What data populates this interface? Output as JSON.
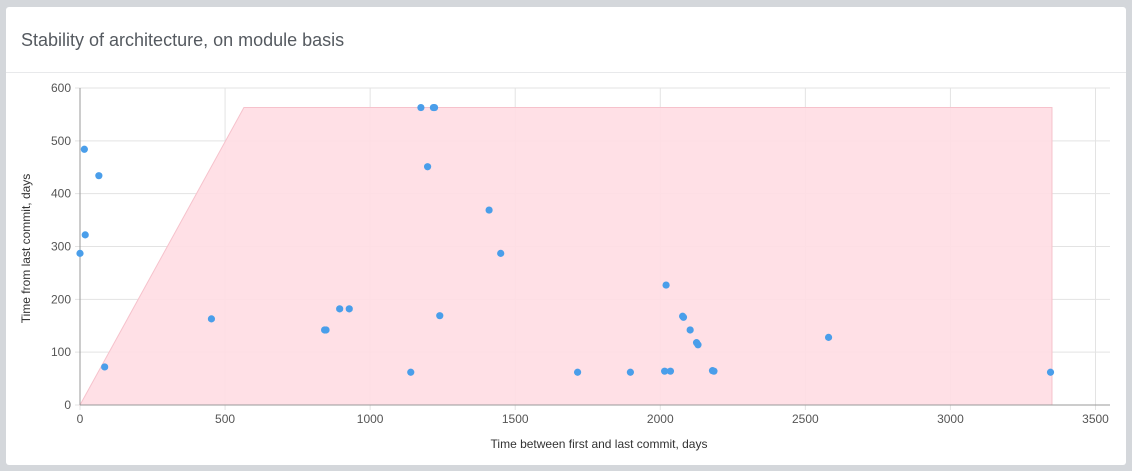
{
  "page": {
    "title": "Stability of architecture, on module basis"
  },
  "chart_data": {
    "type": "scatter",
    "title": "Stability of architecture, on module basis",
    "xlabel": "Time between first and last commit, days",
    "ylabel": "Time from last commit, days",
    "xlim": [
      0,
      3550
    ],
    "ylim": [
      0,
      600
    ],
    "xticks": [
      0,
      500,
      1000,
      1500,
      2000,
      2500,
      3000,
      3500
    ],
    "yticks": [
      0,
      100,
      200,
      300,
      400,
      500,
      600
    ],
    "grid": true,
    "legend": "none",
    "colors": {
      "points": "#4a9eea",
      "region_fill": "#ffdde3",
      "region_stroke": "#f6c2cc",
      "grid": "#e3e3e3",
      "axis": "#999999"
    },
    "region": [
      {
        "x": 0,
        "y": 0
      },
      {
        "x": 565,
        "y": 563
      },
      {
        "x": 3350,
        "y": 563
      },
      {
        "x": 3350,
        "y": 0
      }
    ],
    "points": [
      {
        "x": 0,
        "y": 287
      },
      {
        "x": 15,
        "y": 484
      },
      {
        "x": 18,
        "y": 322
      },
      {
        "x": 65,
        "y": 434
      },
      {
        "x": 85,
        "y": 72
      },
      {
        "x": 453,
        "y": 163
      },
      {
        "x": 843,
        "y": 142
      },
      {
        "x": 848,
        "y": 142
      },
      {
        "x": 895,
        "y": 182
      },
      {
        "x": 928,
        "y": 182
      },
      {
        "x": 1140,
        "y": 62
      },
      {
        "x": 1175,
        "y": 563
      },
      {
        "x": 1198,
        "y": 451
      },
      {
        "x": 1218,
        "y": 563
      },
      {
        "x": 1222,
        "y": 563
      },
      {
        "x": 1240,
        "y": 169
      },
      {
        "x": 1410,
        "y": 369
      },
      {
        "x": 1450,
        "y": 287
      },
      {
        "x": 1715,
        "y": 62
      },
      {
        "x": 1897,
        "y": 62
      },
      {
        "x": 2015,
        "y": 64
      },
      {
        "x": 2020,
        "y": 227
      },
      {
        "x": 2035,
        "y": 64
      },
      {
        "x": 2077,
        "y": 168
      },
      {
        "x": 2080,
        "y": 166
      },
      {
        "x": 2103,
        "y": 142
      },
      {
        "x": 2125,
        "y": 118
      },
      {
        "x": 2130,
        "y": 114
      },
      {
        "x": 2180,
        "y": 65
      },
      {
        "x": 2185,
        "y": 64
      },
      {
        "x": 2580,
        "y": 128
      },
      {
        "x": 3345,
        "y": 62
      }
    ]
  }
}
